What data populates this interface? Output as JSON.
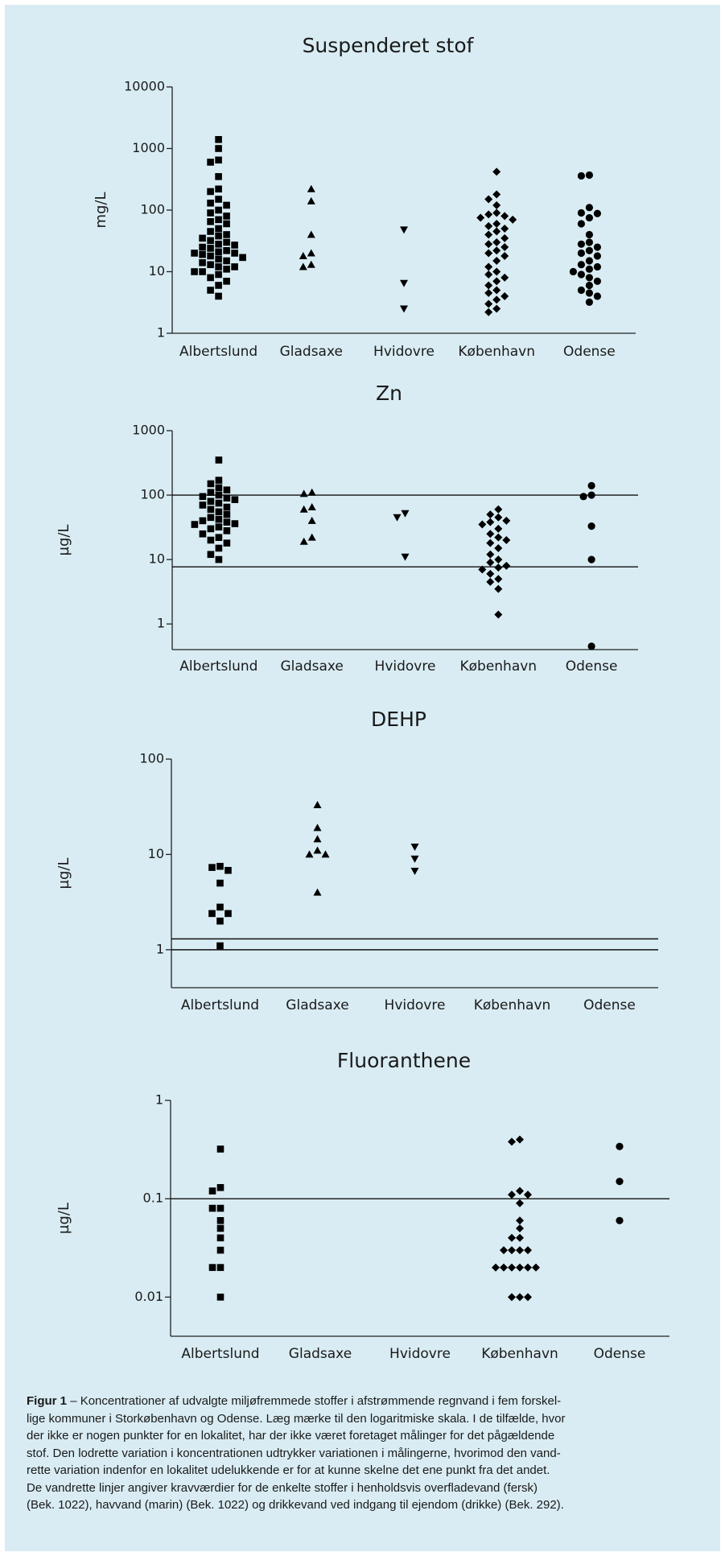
{
  "chart_data": [
    {
      "type": "strip",
      "title": "Suspenderet stof",
      "y_label": "mg/L",
      "log_scale": true,
      "color": "#000000",
      "ylim": [
        1,
        10000
      ],
      "yticks": [
        1,
        10,
        100,
        1000,
        10000
      ],
      "categories": [
        "Albertslund",
        "Gladsaxe",
        "Hvidovre",
        "København",
        "Odense"
      ],
      "markers": [
        "square",
        "triangle-up",
        "triangle-down",
        "diamond",
        "circle"
      ],
      "reference_lines": [],
      "values": [
        [
          1400,
          1000,
          650,
          600,
          350,
          220,
          200,
          150,
          130,
          120,
          100,
          90,
          80,
          70,
          65,
          60,
          50,
          45,
          40,
          38,
          35,
          32,
          30,
          28,
          27,
          25,
          24,
          22,
          21,
          20,
          20,
          19,
          18,
          17,
          16,
          15,
          14,
          13,
          12,
          12,
          11,
          10,
          10,
          9,
          8,
          7,
          6,
          5,
          4
        ],
        [
          220,
          140,
          40,
          20,
          18,
          13,
          12
        ],
        [
          48,
          6.5,
          2.5
        ],
        [
          420,
          180,
          150,
          120,
          90,
          85,
          80,
          75,
          70,
          60,
          55,
          50,
          45,
          40,
          35,
          30,
          28,
          25,
          22,
          20,
          18,
          15,
          12,
          10,
          9,
          8,
          7,
          6,
          5,
          4.5,
          4,
          3.5,
          3,
          2.5,
          2.2
        ],
        [
          370,
          360,
          110,
          90,
          88,
          75,
          60,
          40,
          30,
          28,
          25,
          22,
          20,
          18,
          15,
          13,
          12,
          11,
          10,
          9,
          8,
          7,
          6,
          5,
          4.5,
          4,
          3.2
        ]
      ]
    },
    {
      "type": "strip",
      "title": "Zn",
      "y_label": "µg/L",
      "log_scale": true,
      "color": "#000000",
      "ylim": [
        0.4,
        1000
      ],
      "yticks": [
        1,
        10,
        100,
        1000
      ],
      "categories": [
        "Albertslund",
        "Gladsaxe",
        "Hvidovre",
        "København",
        "Odense"
      ],
      "markers": [
        "square",
        "triangle-up",
        "triangle-down",
        "diamond",
        "circle"
      ],
      "reference_lines": [
        100,
        7.7
      ],
      "values": [
        [
          350,
          170,
          150,
          130,
          120,
          110,
          100,
          95,
          90,
          85,
          80,
          75,
          70,
          65,
          60,
          55,
          50,
          45,
          42,
          40,
          38,
          36,
          35,
          32,
          30,
          28,
          25,
          22,
          20,
          18,
          15,
          12,
          10
        ],
        [
          110,
          105,
          65,
          60,
          40,
          22,
          19
        ],
        [
          52,
          45,
          11
        ],
        [
          60,
          50,
          45,
          40,
          38,
          35,
          30,
          25,
          22,
          20,
          18,
          15,
          12,
          10,
          9,
          8,
          7.5,
          7,
          6,
          5,
          4.5,
          3.5,
          1.4
        ],
        [
          140,
          100,
          95,
          33,
          10,
          0.45
        ]
      ]
    },
    {
      "type": "strip",
      "title": "DEHP",
      "y_label": "µg/L",
      "log_scale": true,
      "color": "#000000",
      "ylim": [
        0.4,
        100
      ],
      "yticks": [
        1,
        10,
        100
      ],
      "categories": [
        "Albertslund",
        "Gladsaxe",
        "Hvidovre",
        "København",
        "Odense"
      ],
      "markers": [
        "square",
        "triangle-up",
        "triangle-down",
        "diamond",
        "circle"
      ],
      "reference_lines": [
        1.3,
        1
      ],
      "values": [
        [
          7.5,
          7.3,
          6.8,
          5,
          2.8,
          2.4,
          2.4,
          2,
          1.1
        ],
        [
          33,
          19,
          14.5,
          11,
          10,
          10,
          4
        ],
        [
          12,
          9,
          6.7
        ],
        [],
        []
      ]
    },
    {
      "type": "strip",
      "title": "Fluoranthene",
      "y_label": "µg/L",
      "log_scale": true,
      "color": "#000000",
      "ylim": [
        0.004,
        1
      ],
      "yticks": [
        0.01,
        0.1,
        1
      ],
      "categories": [
        "Albertslund",
        "Gladsaxe",
        "Hvidovre",
        "København",
        "Odense"
      ],
      "markers": [
        "square",
        "triangle-up",
        "triangle-down",
        "diamond",
        "circle"
      ],
      "reference_lines": [
        0.1
      ],
      "values": [
        [
          0.32,
          0.13,
          0.12,
          0.08,
          0.08,
          0.06,
          0.05,
          0.04,
          0.03,
          0.02,
          0.02,
          0.01
        ],
        [],
        [],
        [
          0.4,
          0.38,
          0.12,
          0.11,
          0.11,
          0.09,
          0.06,
          0.05,
          0.04,
          0.04,
          0.03,
          0.03,
          0.03,
          0.03,
          0.02,
          0.02,
          0.02,
          0.02,
          0.02,
          0.02,
          0.01,
          0.01,
          0.01
        ],
        [
          0.34,
          0.15,
          0.06
        ]
      ]
    }
  ],
  "caption": {
    "label": "Figur 1",
    "lines": [
      "– Koncentrationer af udvalgte miljøfremmede stoffer i afstrømmende regnvand i fem forskel-",
      "lige kommuner i Storkøbenhavn og Odense. Læg mærke til den logaritmiske skala. I de tilfælde, hvor",
      "der ikke er nogen punkter for en lokalitet, har der ikke været foretaget målinger for det pågældende",
      "stof. Den lodrette variation i koncentrationen udtrykker variationen i målingerne, hvorimod den vand-",
      "rette variation indenfor en lokalitet udelukkende er for at kunne skelne det ene punkt fra det andet.",
      "De vandrette linjer angiver kravværdier for de enkelte stoffer i henholdsvis overfladevand (fersk)",
      "(Bek. 1022), havvand (marin) (Bek. 1022) og drikkevand ved indgang til ejendom (drikke) (Bek. 292)."
    ]
  }
}
